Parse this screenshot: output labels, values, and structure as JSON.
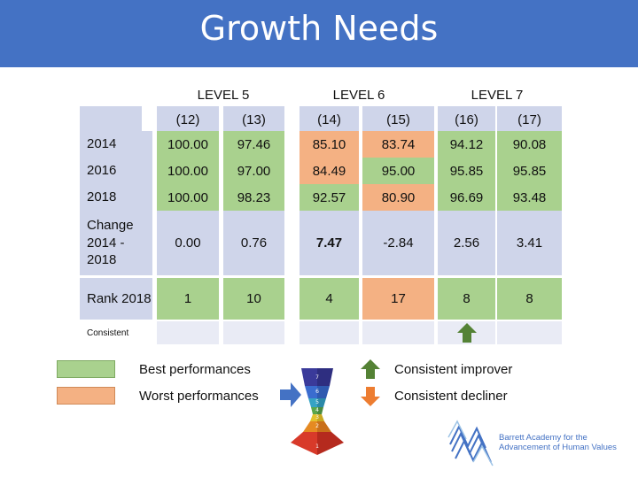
{
  "title": "Growth Needs",
  "levels": [
    "LEVEL 5",
    "LEVEL 6",
    "LEVEL 7"
  ],
  "columns": [
    "(12)",
    "(13)",
    "(14)",
    "(15)",
    "(16)",
    "(17)"
  ],
  "rows": [
    {
      "label": "2014",
      "values": [
        "100.00",
        "97.46",
        "85.10",
        "83.74",
        "94.12",
        "90.08"
      ]
    },
    {
      "label": "2016",
      "values": [
        "100.00",
        "97.00",
        "84.49",
        "95.00",
        "95.85",
        "95.85"
      ]
    },
    {
      "label": "2018",
      "values": [
        "100.00",
        "98.23",
        "92.57",
        "80.90",
        "96.69",
        "93.48"
      ]
    },
    {
      "label": "Change 2014 - 2018",
      "values": [
        "0.00",
        "0.76",
        "7.47",
        "-2.84",
        "2.56",
        "3.41"
      ]
    },
    {
      "label": "Rank 2018",
      "values": [
        "1",
        "10",
        "4",
        "17",
        "8",
        "8"
      ]
    },
    {
      "label": "Consistent",
      "values": [
        "",
        "",
        "",
        "",
        "up",
        ""
      ]
    }
  ],
  "colors": {
    "header_blue": "#4472c4",
    "cell_blue": "#cfd5ea",
    "light_gray": "#e9ebf5",
    "green": "#a9d18e",
    "orange": "#f4b183",
    "arrow_green": "#548235",
    "arrow_orange": "#ed7d31"
  },
  "legend": {
    "best": "Best performances",
    "worst": "Worst performances",
    "improver": "Consistent improver",
    "decliner": "Consistent decliner"
  },
  "logo": {
    "line1": "Barrett Academy for the",
    "line2": "Advancement of Human Values"
  },
  "pyramid_levels": [
    "7",
    "6",
    "5",
    "4",
    "3",
    "2",
    "1"
  ]
}
